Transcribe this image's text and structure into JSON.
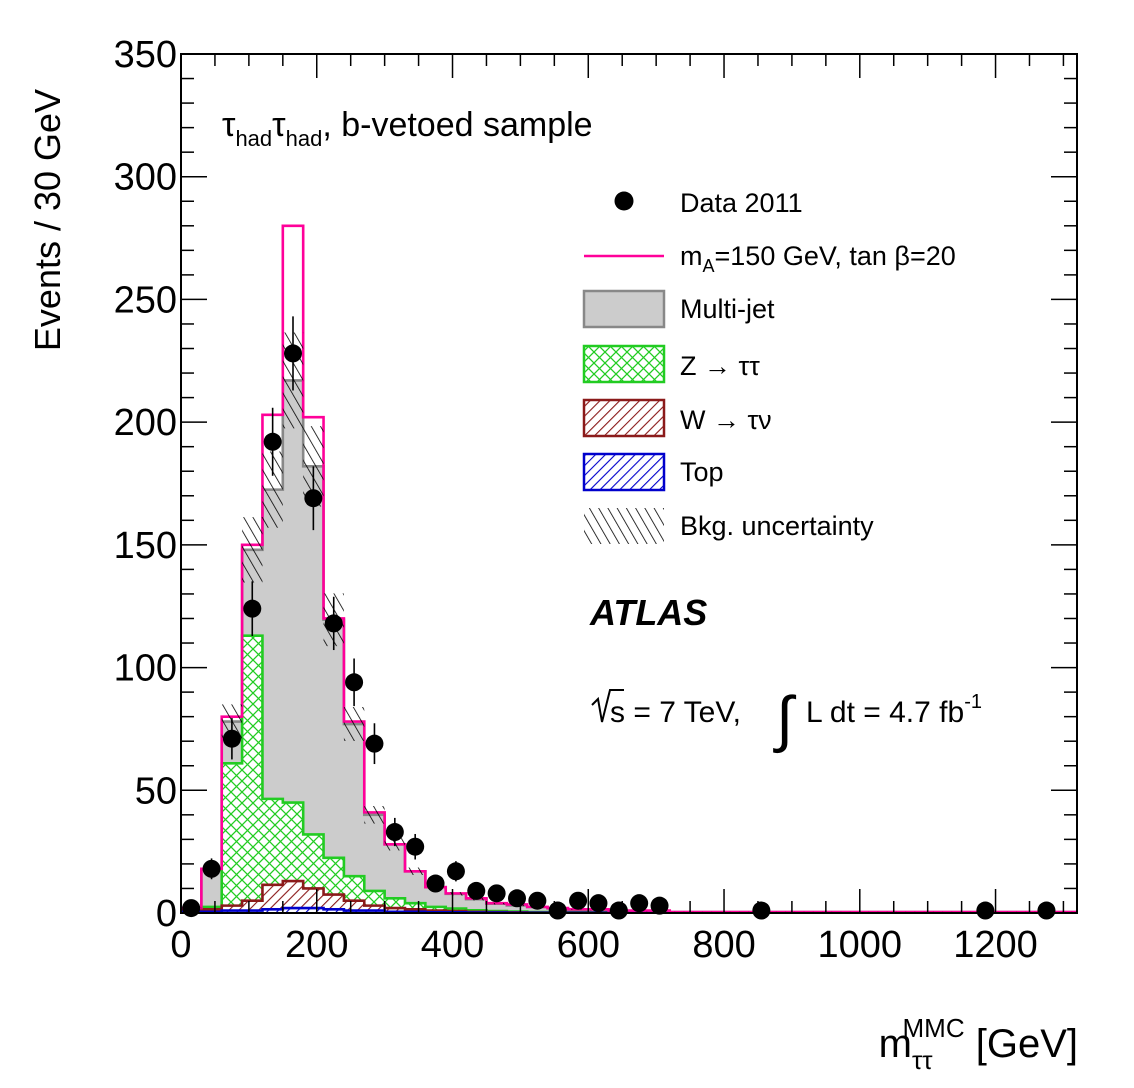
{
  "chart_data": {
    "type": "bar",
    "title": "",
    "annotation": {
      "tau": "τ",
      "had": "had",
      "sep": ",",
      "sample_text": " b-vetoed sample"
    },
    "experiment": "ATLAS",
    "lumi": {
      "sqrt_s": "s = 7 TeV,",
      "integral": "∫",
      "lumi_text": "L dt = 4.7 fb",
      "lumi_exp": "-1"
    },
    "xlabel": {
      "main": "m",
      "sub": "ττ",
      "sup": "MMC",
      "unit": " [GeV]"
    },
    "ylabel": "Events / 30 GeV",
    "xlim": [
      0,
      1320
    ],
    "ylim": [
      0,
      350
    ],
    "xticks": [
      0,
      200,
      400,
      600,
      800,
      1000,
      1200
    ],
    "yticks": [
      0,
      50,
      100,
      150,
      200,
      250,
      300,
      350
    ],
    "bin_edges": [
      0,
      30,
      60,
      90,
      120,
      150,
      180,
      210,
      240,
      270,
      300,
      330,
      360,
      390,
      420,
      450,
      480,
      510,
      540,
      570,
      600,
      630,
      660,
      690,
      720,
      1320
    ],
    "legend": {
      "position": "top-right",
      "entries": [
        {
          "key": "data",
          "label": "Data 2011"
        },
        {
          "key": "signal",
          "label_main": "m",
          "label_sub": "A",
          "label_rest": "=150 GeV, tan β=20"
        },
        {
          "key": "multijet",
          "label": "Multi-jet"
        },
        {
          "key": "ztautau",
          "label": "Z → ττ"
        },
        {
          "key": "wtaunu",
          "label": "W → τν"
        },
        {
          "key": "top",
          "label": "Top"
        },
        {
          "key": "unc",
          "label": "Bkg. uncertainty"
        }
      ]
    },
    "stack": [
      {
        "key": "top",
        "color": "#0000cc",
        "values": [
          0.5,
          0.5,
          1,
          1,
          1.5,
          2,
          2,
          1.5,
          1,
          1,
          0.5,
          0.5,
          0.3,
          0.3,
          0.2,
          0.2,
          0.1,
          0.1,
          0.1,
          0.1,
          0.1,
          0.1,
          0.1,
          0.1,
          0.1
        ]
      },
      {
        "key": "wtaunu",
        "color": "#8b1a1a",
        "values": [
          1,
          1,
          2,
          4,
          10,
          11,
          8,
          6,
          4,
          2,
          1.5,
          1,
          0.7,
          0.5,
          0.3,
          0.2,
          0.2,
          0.1,
          0.1,
          0.1,
          0.1,
          0.1,
          0.1,
          0.1,
          0.1
        ]
      },
      {
        "key": "ztautau",
        "color": "#22cc22",
        "values": [
          0.5,
          1,
          58,
          108,
          35,
          32,
          22,
          15,
          10,
          6,
          4,
          2.5,
          1.5,
          1,
          0.6,
          0.4,
          0.3,
          0.2,
          0.2,
          0.2,
          0.1,
          0.1,
          0.1,
          0.1,
          0.1
        ]
      },
      {
        "key": "multijet",
        "color": "#888888",
        "values": [
          0,
          15,
          17,
          35,
          126,
          172,
          150,
          97,
          62,
          31,
          22,
          13,
          8,
          6,
          4.5,
          3,
          2.5,
          2,
          1.5,
          1,
          0.7,
          0.5,
          0.3,
          0.2,
          0.1
        ]
      }
    ],
    "signal": {
      "color": "#ff0099",
      "values": [
        2,
        18,
        80,
        150,
        203,
        280,
        202,
        120,
        78,
        41,
        28,
        17,
        10,
        8,
        6,
        4,
        3.5,
        2.5,
        2,
        1.5,
        1.5,
        1,
        1,
        1,
        0.3
      ]
    },
    "uncertainty_frac": 0.09,
    "data_points": {
      "x": [
        15,
        45,
        75,
        105,
        135,
        165,
        195,
        225,
        255,
        285,
        315,
        345,
        375,
        405,
        435,
        465,
        495,
        525,
        555,
        585,
        615,
        645,
        675,
        705,
        855,
        1185,
        1275
      ],
      "y": [
        2,
        18,
        71,
        124,
        192,
        228,
        169,
        118,
        94,
        69,
        33,
        27,
        12,
        17,
        9,
        8,
        6,
        5,
        1,
        5,
        4,
        1,
        4,
        3,
        1,
        1,
        1
      ]
    }
  }
}
